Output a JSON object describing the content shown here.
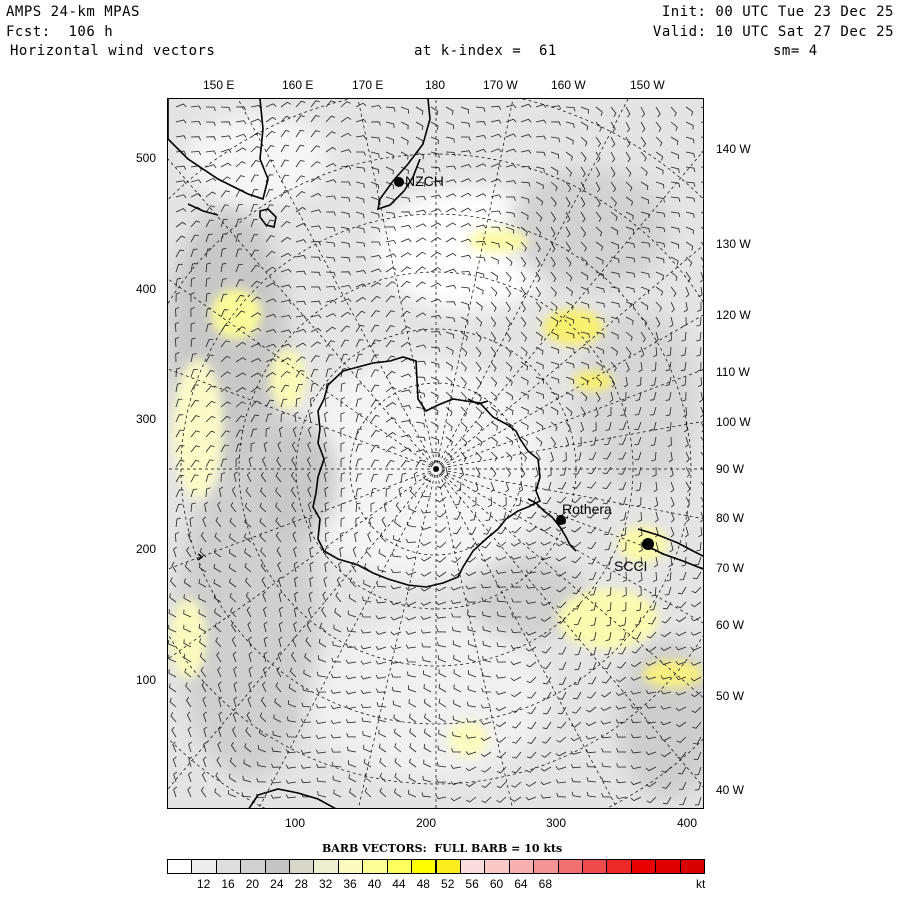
{
  "header": {
    "model": "AMPS 24-km MPAS",
    "forecast": "Fcst:  106 h",
    "field": "Horizontal wind vectors",
    "level": "at k-index =  61",
    "init": "Init: 00 UTC Tue 23 Dec 25",
    "valid": "Valid: 10 UTC Sat 27 Dec 25",
    "smoothing": "sm= 4"
  },
  "top_lon_labels": [
    "150 E",
    "160 E",
    "170 E",
    "180",
    "170 W",
    "160 W",
    "150 W"
  ],
  "right_lon_labels": [
    "140 W",
    "130 W",
    "120 W",
    "110 W",
    "100 W",
    "90 W",
    "80 W",
    "70 W",
    "60 W",
    "50 W",
    "40 W"
  ],
  "y_ticks": [
    "500",
    "400",
    "300",
    "200",
    "100"
  ],
  "x_ticks": [
    "100",
    "200",
    "300",
    "400"
  ],
  "stations": [
    {
      "name": "NZCH"
    },
    {
      "name": "Rothera"
    },
    {
      "name": "SCCI"
    }
  ],
  "legend": {
    "title": "BARB VECTORS:  FULL BARB = 10 kts",
    "labels": [
      "12",
      "16",
      "20",
      "24",
      "28",
      "32",
      "36",
      "40",
      "44",
      "48",
      "52",
      "56",
      "60",
      "64",
      "68"
    ],
    "unit": "kt",
    "colors": [
      "#ffffff",
      "#ececec",
      "#dedede",
      "#d0d0d0",
      "#c4c4c4",
      "#d8d8c8",
      "#eeeed0",
      "#fbfbc0",
      "#ffff98",
      "#ffff60",
      "#ffff00",
      "#fbed1e",
      "#fcdcdc",
      "#fbc8c8",
      "#f8b0b0",
      "#f49494",
      "#f07070",
      "#ee4c4c",
      "#ec2828",
      "#e80000",
      "#e00000",
      "#d80000"
    ]
  }
}
